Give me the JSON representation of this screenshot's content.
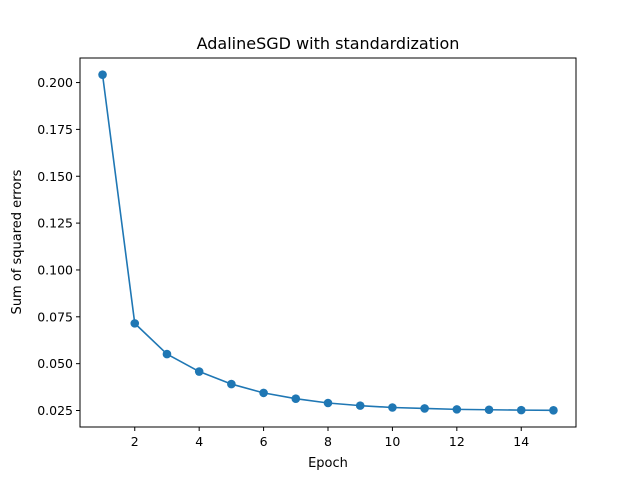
{
  "chart_data": {
    "type": "line",
    "title": "AdalineSGD with standardization",
    "xlabel": "Epoch",
    "ylabel": "Sum of squared errors",
    "x": [
      1,
      2,
      3,
      4,
      5,
      6,
      7,
      8,
      9,
      10,
      11,
      12,
      13,
      14,
      15
    ],
    "series": [
      {
        "values": [
          0.2042,
          0.0715,
          0.0551,
          0.0458,
          0.0391,
          0.0344,
          0.0313,
          0.029,
          0.0276,
          0.0266,
          0.0261,
          0.0256,
          0.0254,
          0.0252,
          0.0251
        ],
        "color": "#1f77b4",
        "marker": "circle"
      }
    ],
    "xlim": [
      0.3,
      15.7
    ],
    "ylim": [
      0.0162,
      0.2131
    ],
    "xticks": [
      2,
      4,
      6,
      8,
      10,
      12,
      14
    ],
    "yticks": [
      0.025,
      0.05,
      0.075,
      0.1,
      0.125,
      0.15,
      0.175,
      0.2
    ],
    "xtick_labels": [
      "2",
      "4",
      "6",
      "8",
      "10",
      "12",
      "14"
    ],
    "ytick_labels": [
      "0.025",
      "0.050",
      "0.075",
      "0.100",
      "0.125",
      "0.150",
      "0.175",
      "0.200"
    ],
    "grid": false,
    "legend": "none"
  }
}
